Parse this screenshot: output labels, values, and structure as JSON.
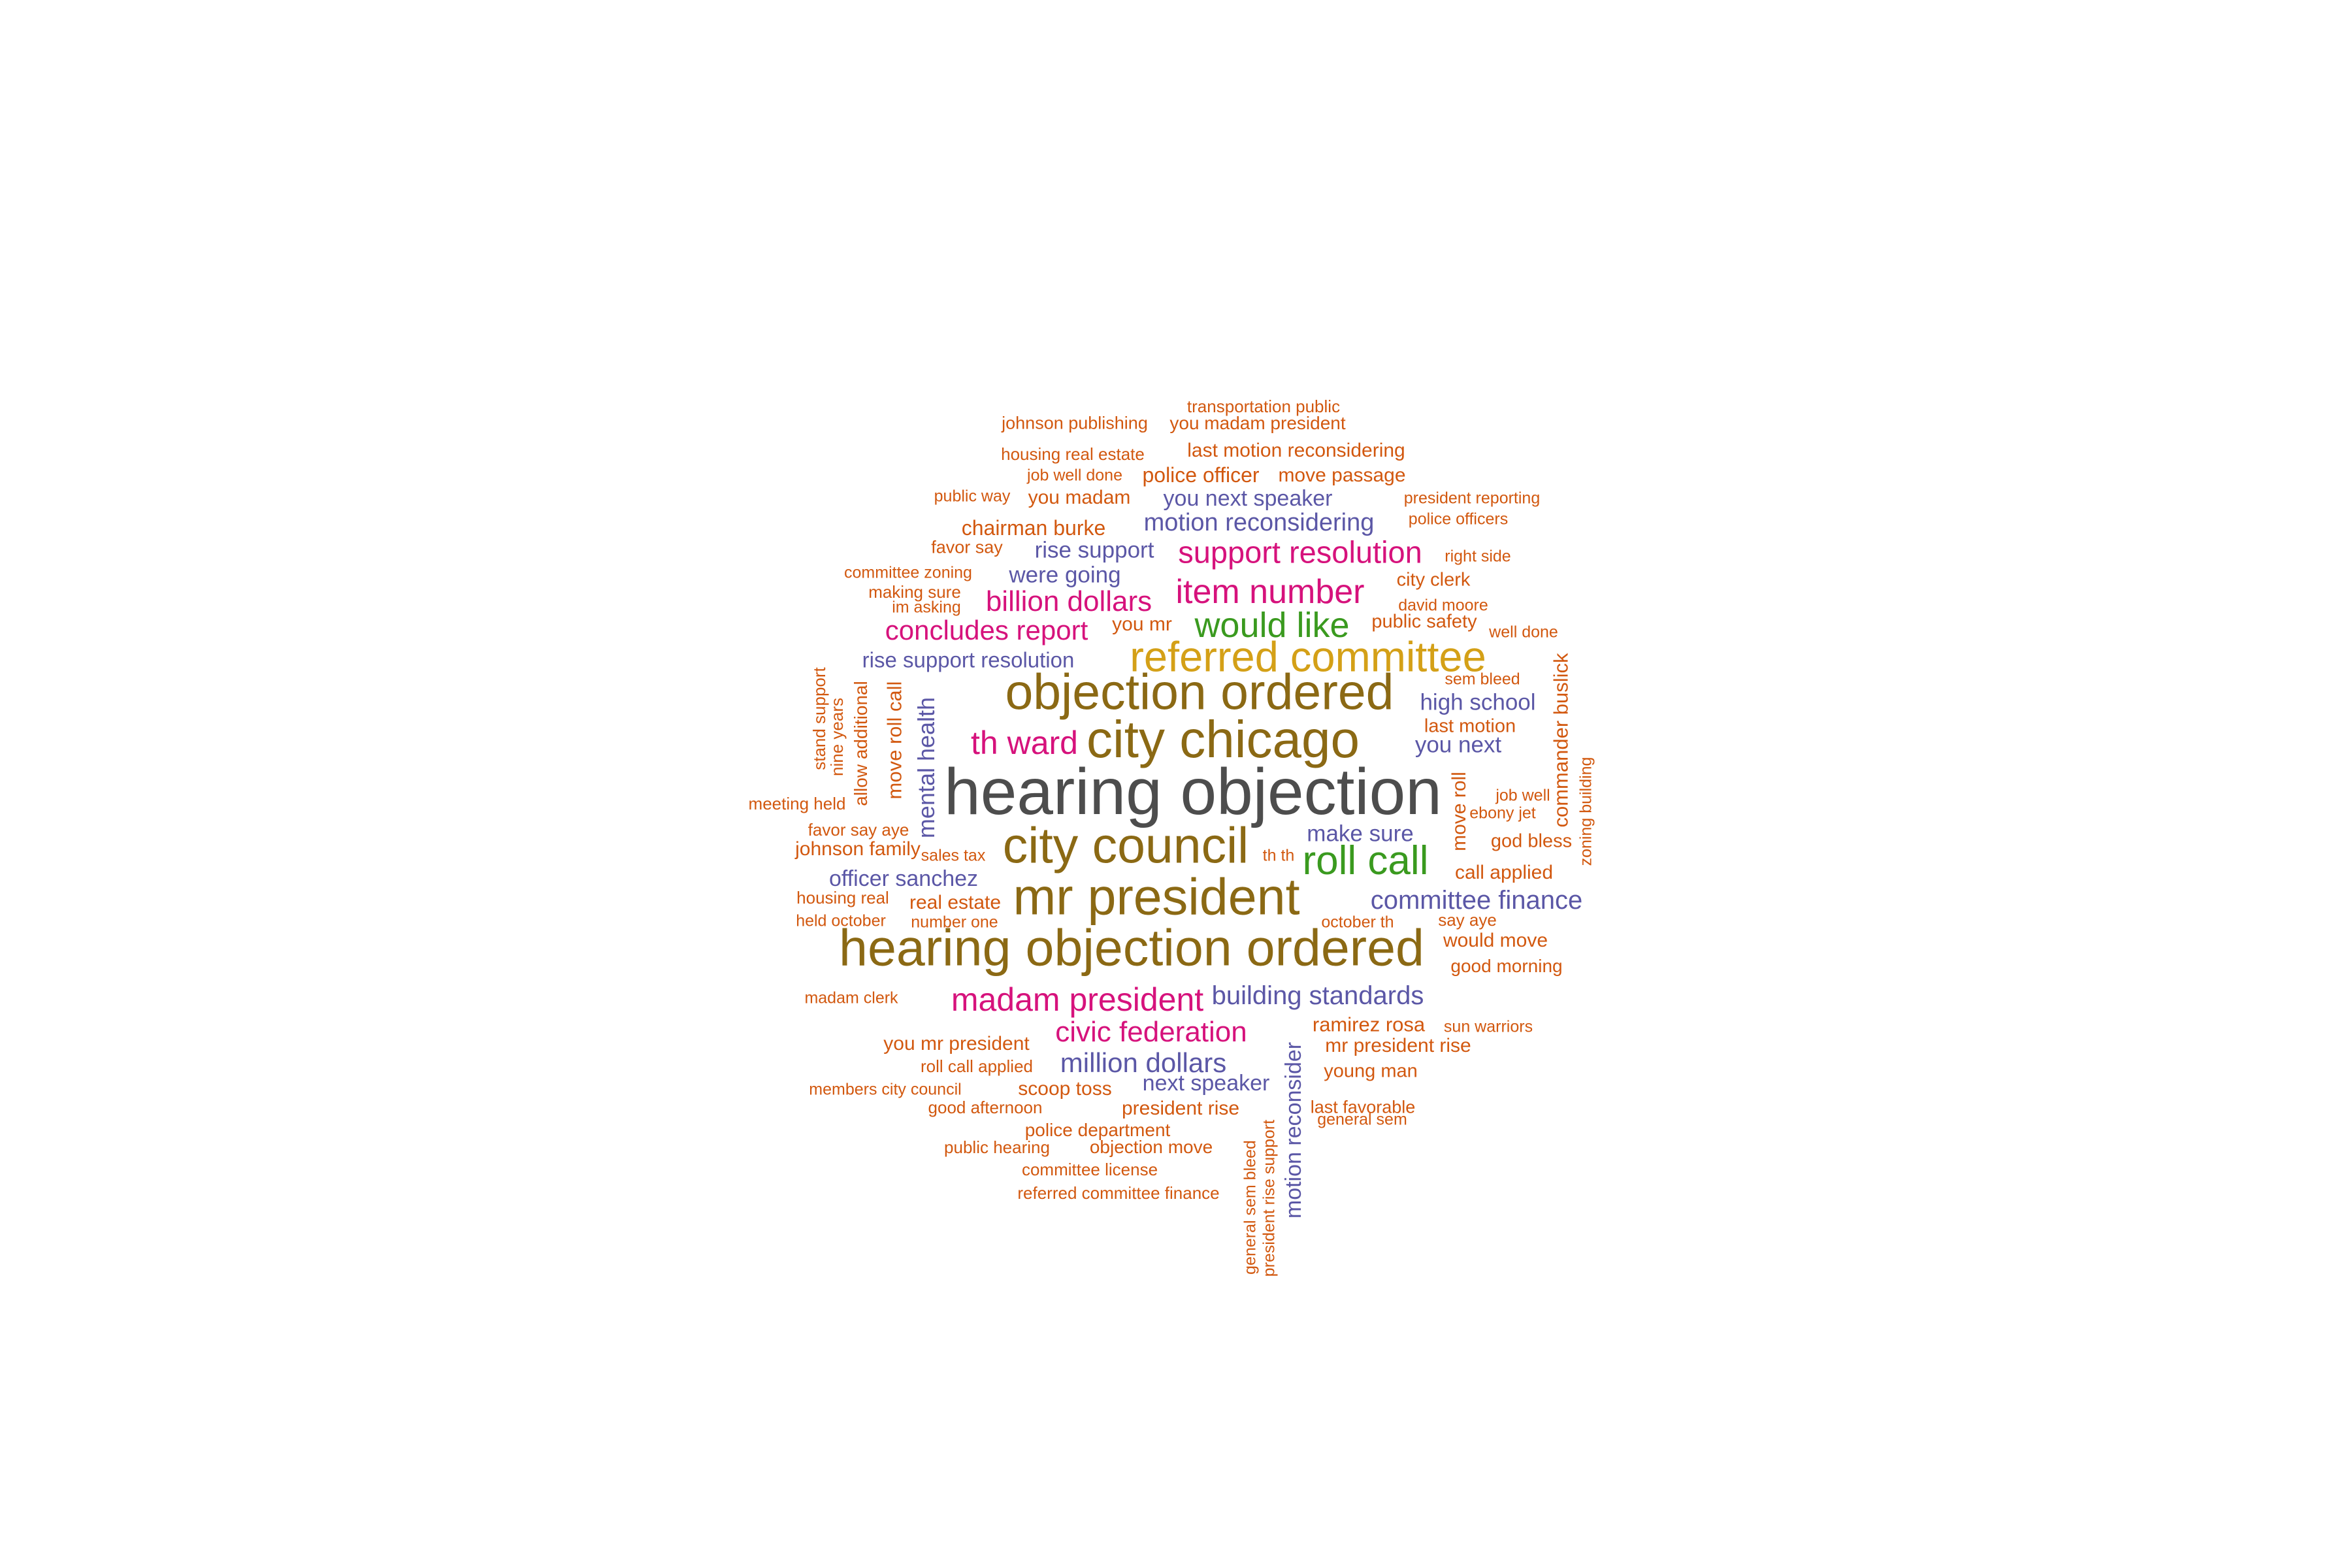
{
  "palette": {
    "grey": "#4D4D4D",
    "brown": "#8B6914",
    "gold": "#D4A017",
    "green": "#3A9A1F",
    "magenta": "#D6127C",
    "purple": "#5B57A6",
    "orange": "#D2580F"
  },
  "words": [
    {
      "text": "hearing objection",
      "color": "grey"
    },
    {
      "text": "hearing objection ordered",
      "color": "brown"
    },
    {
      "text": "mr president",
      "color": "brown"
    },
    {
      "text": "city chicago",
      "color": "brown"
    },
    {
      "text": "city council",
      "color": "brown"
    },
    {
      "text": "objection ordered",
      "color": "brown"
    },
    {
      "text": "referred committee",
      "color": "gold"
    },
    {
      "text": "roll call",
      "color": "green"
    },
    {
      "text": "would like",
      "color": "green"
    },
    {
      "text": "madam president",
      "color": "magenta"
    },
    {
      "text": "th ward",
      "color": "magenta"
    },
    {
      "text": "item number",
      "color": "magenta"
    },
    {
      "text": "support resolution",
      "color": "magenta"
    },
    {
      "text": "civic federation",
      "color": "magenta"
    },
    {
      "text": "billion dollars",
      "color": "magenta"
    },
    {
      "text": "concludes report",
      "color": "magenta"
    },
    {
      "text": "committee finance",
      "color": "purple"
    },
    {
      "text": "building standards",
      "color": "purple"
    },
    {
      "text": "million dollars",
      "color": "purple"
    },
    {
      "text": "motion reconsidering",
      "color": "purple"
    },
    {
      "text": "you next speaker",
      "color": "purple"
    },
    {
      "text": "rise support",
      "color": "purple"
    },
    {
      "text": "were going",
      "color": "purple"
    },
    {
      "text": "rise support resolution",
      "color": "purple"
    },
    {
      "text": "high school",
      "color": "purple"
    },
    {
      "text": "you next",
      "color": "purple"
    },
    {
      "text": "make sure",
      "color": "purple"
    },
    {
      "text": "officer sanchez",
      "color": "purple"
    },
    {
      "text": "next speaker",
      "color": "purple"
    },
    {
      "text": "mental health",
      "color": "purple"
    },
    {
      "text": "motion reconsider",
      "color": "purple"
    },
    {
      "text": "transportation public",
      "color": "orange"
    },
    {
      "text": "johnson publishing",
      "color": "orange"
    },
    {
      "text": "you madam president",
      "color": "orange"
    },
    {
      "text": "housing real estate",
      "color": "orange"
    },
    {
      "text": "last motion reconsidering",
      "color": "orange"
    },
    {
      "text": "job well done",
      "color": "orange"
    },
    {
      "text": "police officer",
      "color": "orange"
    },
    {
      "text": "move passage",
      "color": "orange"
    },
    {
      "text": "public way",
      "color": "orange"
    },
    {
      "text": "you madam",
      "color": "orange"
    },
    {
      "text": "president reporting",
      "color": "orange"
    },
    {
      "text": "police officers",
      "color": "orange"
    },
    {
      "text": "chairman burke",
      "color": "orange"
    },
    {
      "text": "favor say",
      "color": "orange"
    },
    {
      "text": "right side",
      "color": "orange"
    },
    {
      "text": "committee zoning",
      "color": "orange"
    },
    {
      "text": "city clerk",
      "color": "orange"
    },
    {
      "text": "making sure",
      "color": "orange"
    },
    {
      "text": "im asking",
      "color": "orange"
    },
    {
      "text": "david moore",
      "color": "orange"
    },
    {
      "text": "you mr",
      "color": "orange"
    },
    {
      "text": "public safety",
      "color": "orange"
    },
    {
      "text": "well done",
      "color": "orange"
    },
    {
      "text": "sem bleed",
      "color": "orange"
    },
    {
      "text": "last motion",
      "color": "orange"
    },
    {
      "text": "meeting held",
      "color": "orange"
    },
    {
      "text": "job well",
      "color": "orange"
    },
    {
      "text": "ebony jet",
      "color": "orange"
    },
    {
      "text": "favor say aye",
      "color": "orange"
    },
    {
      "text": "god bless",
      "color": "orange"
    },
    {
      "text": "johnson family",
      "color": "orange"
    },
    {
      "text": "sales tax",
      "color": "orange"
    },
    {
      "text": "th th",
      "color": "orange"
    },
    {
      "text": "call applied",
      "color": "orange"
    },
    {
      "text": "housing real",
      "color": "orange"
    },
    {
      "text": "real estate",
      "color": "orange"
    },
    {
      "text": "held october",
      "color": "orange"
    },
    {
      "text": "number one",
      "color": "orange"
    },
    {
      "text": "october th",
      "color": "orange"
    },
    {
      "text": "say aye",
      "color": "orange"
    },
    {
      "text": "would move",
      "color": "orange"
    },
    {
      "text": "good morning",
      "color": "orange"
    },
    {
      "text": "madam clerk",
      "color": "orange"
    },
    {
      "text": "ramirez rosa",
      "color": "orange"
    },
    {
      "text": "sun warriors",
      "color": "orange"
    },
    {
      "text": "mr president rise",
      "color": "orange"
    },
    {
      "text": "you mr president",
      "color": "orange"
    },
    {
      "text": "roll call applied",
      "color": "orange"
    },
    {
      "text": "young man",
      "color": "orange"
    },
    {
      "text": "members city council",
      "color": "orange"
    },
    {
      "text": "scoop toss",
      "color": "orange"
    },
    {
      "text": "good afternoon",
      "color": "orange"
    },
    {
      "text": "president rise",
      "color": "orange"
    },
    {
      "text": "last favorable",
      "color": "orange"
    },
    {
      "text": "general sem",
      "color": "orange"
    },
    {
      "text": "police department",
      "color": "orange"
    },
    {
      "text": "public hearing",
      "color": "orange"
    },
    {
      "text": "objection move",
      "color": "orange"
    },
    {
      "text": "committee license",
      "color": "orange"
    },
    {
      "text": "referred committee finance",
      "color": "orange"
    },
    {
      "text": "stand support",
      "color": "orange"
    },
    {
      "text": "nine years",
      "color": "orange"
    },
    {
      "text": "allow additional",
      "color": "orange"
    },
    {
      "text": "move roll call",
      "color": "orange"
    },
    {
      "text": "move roll",
      "color": "orange"
    },
    {
      "text": "commander buslick",
      "color": "orange"
    },
    {
      "text": "zoning building",
      "color": "orange"
    },
    {
      "text": "general sem bleed",
      "color": "orange"
    },
    {
      "text": "president rise support",
      "color": "orange"
    }
  ]
}
